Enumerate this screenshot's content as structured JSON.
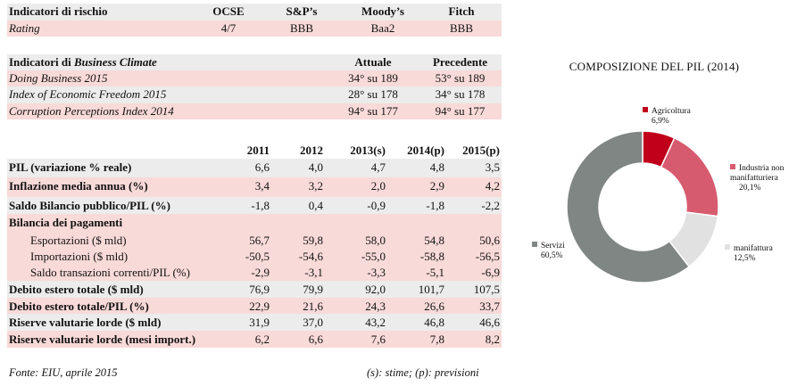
{
  "risk": {
    "header": {
      "title": "Indicatori di rischio",
      "c1": "OCSE",
      "c2": "S&P’s",
      "c3": "Moody’s",
      "c4": "Fitch"
    },
    "row": {
      "label": "Rating",
      "c1": "4/7",
      "c2": "BBB",
      "c3": "Baa2",
      "c4": "BBB"
    }
  },
  "business": {
    "header": {
      "title_plain": "Indicatori di ",
      "title_ital": "Business Climate",
      "c1": "Attuale",
      "c2": "Precedente"
    },
    "rows": [
      {
        "label": "Doing Business 2015",
        "c1": "34° su 189",
        "c2": "53° su 189"
      },
      {
        "label": "Index of Economic Freedom 2015",
        "c1": "28° su 178",
        "c2": "34° su 178"
      },
      {
        "label": "Corruption Perceptions Index 2014",
        "c1": "94° su 177",
        "c2": "94° su 177"
      }
    ]
  },
  "macro": {
    "years": [
      "2011",
      "2012",
      "2013(s)",
      "2014(p)",
      "2015(p)"
    ],
    "rows": [
      {
        "label": "PIL (variazione % reale)",
        "v": [
          "6,6",
          "4,0",
          "4,7",
          "4,8",
          "3,5"
        ]
      },
      {
        "label": "Inflazione media annua (%)",
        "v": [
          "3,4",
          "3,2",
          "2,0",
          "2,9",
          "4,2"
        ]
      },
      {
        "label": "Saldo Bilancio pubblico/PIL (%)",
        "v": [
          "-1,8",
          "0,4",
          "-0,9",
          "-1,8",
          "-2,2"
        ]
      },
      {
        "label": "Bilancia dei pagamenti",
        "v": [
          "",
          "",
          "",
          "",
          ""
        ]
      },
      {
        "label": "Esportazioni ($ mld)",
        "v": [
          "56,7",
          "59,8",
          "58,0",
          "54,8",
          "50,6"
        ]
      },
      {
        "label": "Importazioni ($ mld)",
        "v": [
          "-50,5",
          "-54,6",
          "-55,0",
          "-58,8",
          "-56,5"
        ]
      },
      {
        "label": "Saldo transazioni correnti/PIL (%)",
        "v": [
          "-2,9",
          "-3,1",
          "-3,3",
          "-5,1",
          "-6,9"
        ]
      },
      {
        "label": "Debito estero totale ($ mld)",
        "v": [
          "76,9",
          "79,9",
          "92,0",
          "101,7",
          "107,5"
        ]
      },
      {
        "label": "Debito estero totale/PIL (%)",
        "v": [
          "22,9",
          "21,6",
          "24,3",
          "26,6",
          "33,7"
        ]
      },
      {
        "label": "Riserve valutarie lorde ($ mld)",
        "v": [
          "31,9",
          "37,0",
          "43,2",
          "46,8",
          "46,6"
        ]
      },
      {
        "label": "Riserve valutarie lorde (mesi import.)",
        "v": [
          "6,2",
          "6,6",
          "7,6",
          "7,8",
          "8,2"
        ]
      }
    ]
  },
  "footer": {
    "source": "Fonte:  EIU, aprile 2015",
    "note": "(s): stime; (p): previsioni"
  },
  "chart_data": {
    "type": "pie",
    "title": "COMPOSIZIONE DEL PIL (2014)",
    "donut": true,
    "slices": [
      {
        "name": "Agricoltura",
        "value": 6.9,
        "label": "6,9%",
        "color": "#c0001a"
      },
      {
        "name": "Industria non manifatturiera",
        "value": 20.1,
        "label": "20,1%",
        "color": "#d75b6f"
      },
      {
        "name": "manifattura",
        "value": 12.5,
        "label": "12,5%",
        "color": "#e1e1e1"
      },
      {
        "name": "Servizi",
        "value": 60.5,
        "label": "60,5%",
        "color": "#7f8683"
      }
    ]
  }
}
